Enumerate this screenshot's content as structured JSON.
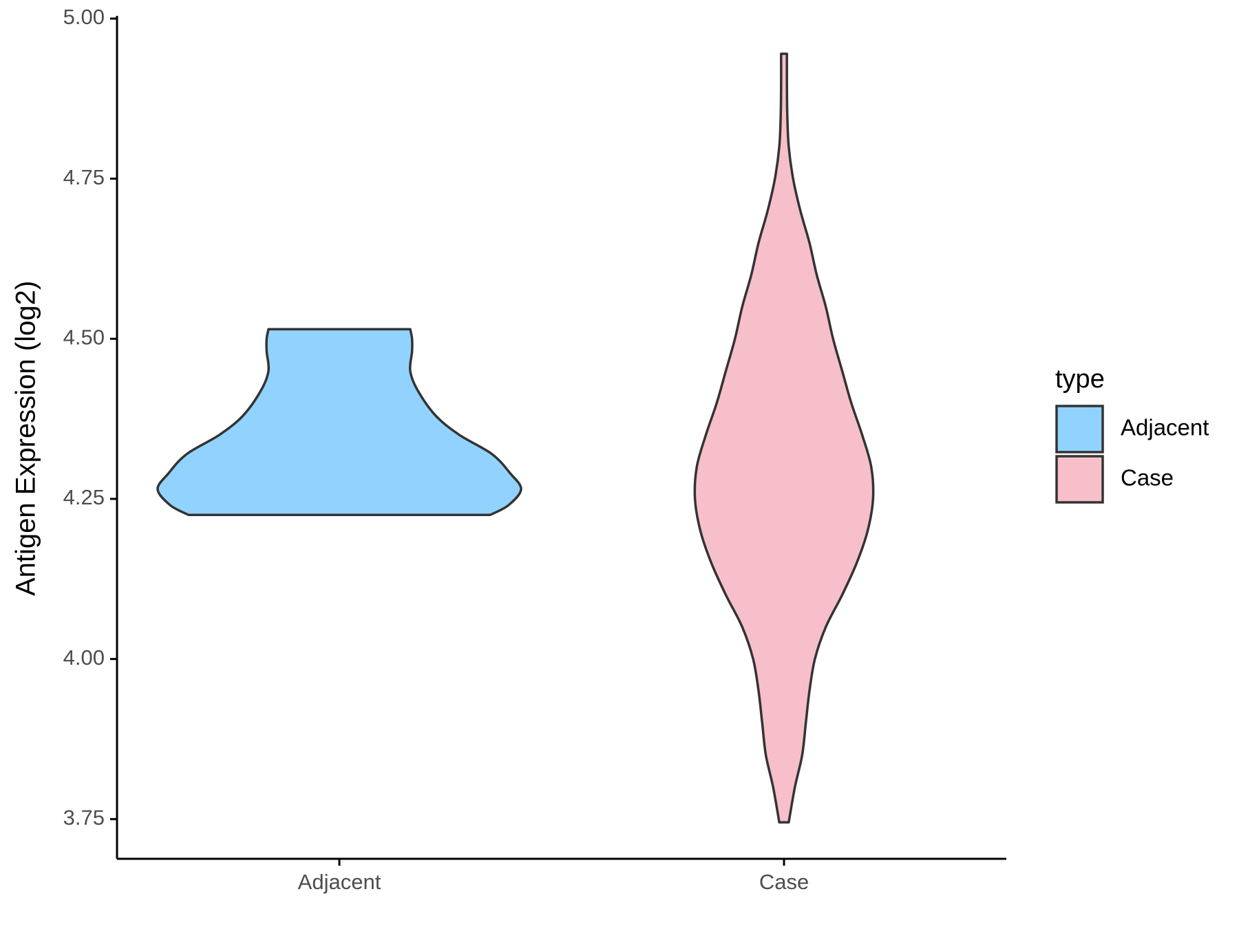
{
  "chart_data": {
    "type": "violin",
    "y_label": "Antigen Expression (log2)",
    "categories": [
      "Adjacent",
      "Case"
    ],
    "legend_title": "type",
    "legend_position": "right",
    "ylim": [
      3.688,
      5.0
    ],
    "yticks": [
      {
        "value": 3.75,
        "label": "3.75"
      },
      {
        "value": 4.0,
        "label": "4.00"
      },
      {
        "value": 4.25,
        "label": "4.25"
      },
      {
        "value": 4.5,
        "label": "4.50"
      },
      {
        "value": 4.75,
        "label": "4.75"
      },
      {
        "value": 5.0,
        "label": "5.00"
      }
    ],
    "series": [
      {
        "name": "Adjacent",
        "color": "#91d3fe",
        "y": [
          4.225,
          4.24,
          4.265,
          4.29,
          4.32,
          4.35,
          4.38,
          4.42,
          4.45,
          4.48,
          4.5,
          4.515
        ],
        "width": [
          0.83,
          0.93,
          1.0,
          0.94,
          0.84,
          0.66,
          0.53,
          0.43,
          0.39,
          0.4,
          0.4,
          0.39
        ]
      },
      {
        "name": "Case",
        "color": "#f7bfca",
        "y": [
          3.745,
          3.8,
          3.85,
          3.9,
          3.95,
          4.0,
          4.05,
          4.1,
          4.15,
          4.2,
          4.25,
          4.3,
          4.35,
          4.4,
          4.45,
          4.5,
          4.55,
          4.6,
          4.65,
          4.7,
          4.75,
          4.8,
          4.85,
          4.9,
          4.945
        ],
        "width": [
          0.026,
          0.06,
          0.1,
          0.12,
          0.14,
          0.17,
          0.23,
          0.32,
          0.4,
          0.46,
          0.49,
          0.48,
          0.43,
          0.37,
          0.32,
          0.27,
          0.23,
          0.18,
          0.14,
          0.09,
          0.05,
          0.026,
          0.018,
          0.016,
          0.016
        ]
      }
    ]
  }
}
